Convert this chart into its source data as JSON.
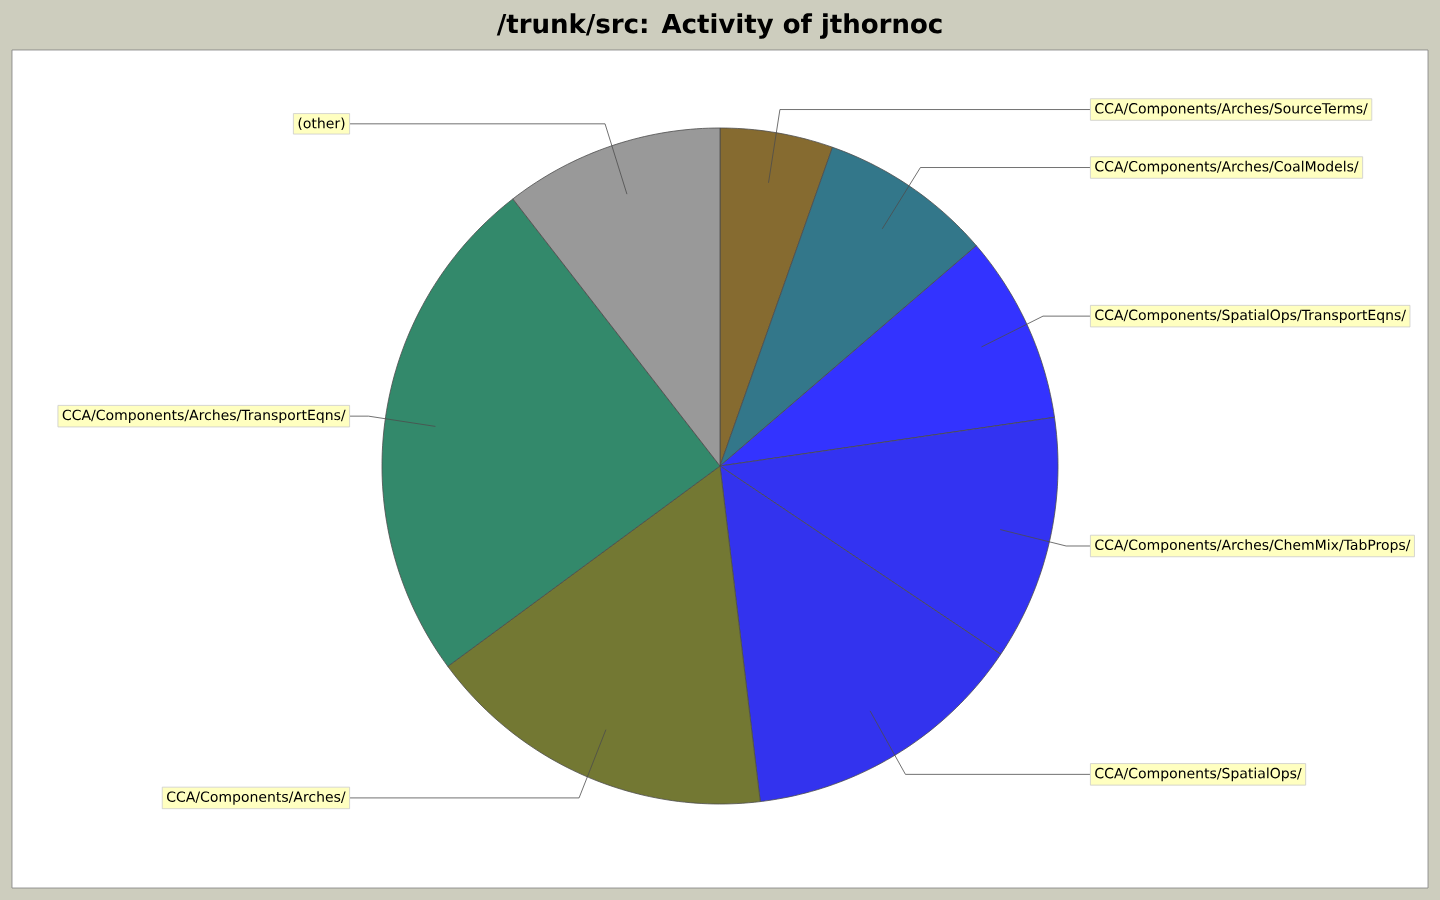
{
  "chart_data": {
    "type": "pie",
    "title": "/trunk/src: Activity of jthornoc",
    "categories": [
      "CCA/Components/Arches/SourceTerms/",
      "CCA/Components/Arches/CoalModels/",
      "CCA/Components/SpatialOps/TransportEqns/",
      "CCA/Components/Arches/ChemMix/TabProps/",
      "CCA/Components/SpatialOps/",
      "CCA/Components/Arches/",
      "CCA/Components/Arches/TransportEqns/",
      "(other)"
    ],
    "values": [
      5.4,
      8.3,
      9.0,
      11.7,
      13.7,
      16.8,
      24.6,
      10.5
    ],
    "colors": [
      "#866b30",
      "#33778a",
      "#3333ff",
      "#3333f2",
      "#3333ee",
      "#737833",
      "#33896b",
      "#999999"
    ]
  }
}
